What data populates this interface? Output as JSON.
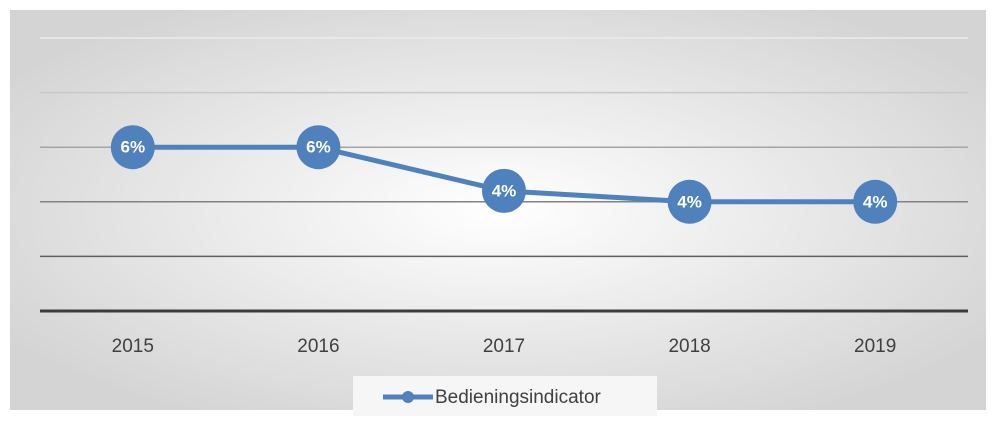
{
  "chart_data": {
    "type": "line",
    "categories": [
      "2015",
      "2016",
      "2017",
      "2018",
      "2019"
    ],
    "series": [
      {
        "name": "Bedieningsindicator",
        "color": "#4f81bd",
        "values": [
          6,
          6,
          4.4,
          4,
          4
        ],
        "value_labels": [
          "6%",
          "6%",
          "4%",
          "4%",
          "4%"
        ]
      }
    ],
    "ylim": [
      0,
      10
    ],
    "yticks": [
      0,
      2,
      4,
      6,
      8,
      10
    ],
    "grid": true,
    "legend": "bottom"
  }
}
